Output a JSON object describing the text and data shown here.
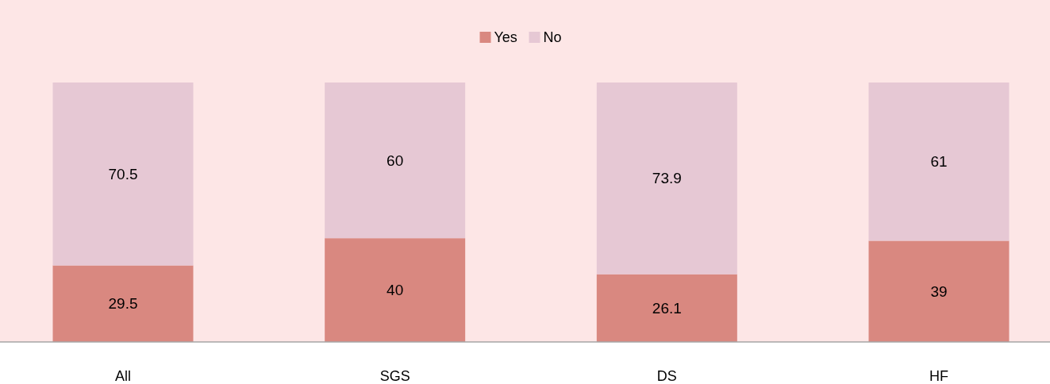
{
  "chart_data": {
    "type": "bar",
    "stacked": true,
    "categories": [
      "All",
      "SGS",
      "DS",
      "HF"
    ],
    "series": [
      {
        "name": "Yes",
        "color": "#d98880",
        "values": [
          29.5,
          40,
          26.1,
          39
        ]
      },
      {
        "name": "No",
        "color": "#e6c8d4",
        "values": [
          70.5,
          60,
          73.9,
          61
        ]
      }
    ],
    "data_labels": true,
    "legend": "top",
    "grid": false
  }
}
